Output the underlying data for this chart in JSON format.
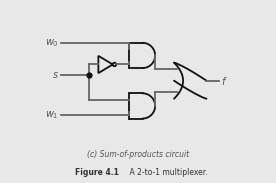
{
  "bg_color": "#e8e8e8",
  "line_color": "#666666",
  "gate_color": "#111111",
  "label_color": "#555555",
  "caption_color": "#555555",
  "fig_label_color": "#333333",
  "caption": "(c) Sum-of-products circuit",
  "figure_label": "Figure 4.1",
  "figure_desc": "    A 2-to-1 multiplexer.",
  "figsize": [
    2.76,
    1.83
  ],
  "dpi": 100
}
